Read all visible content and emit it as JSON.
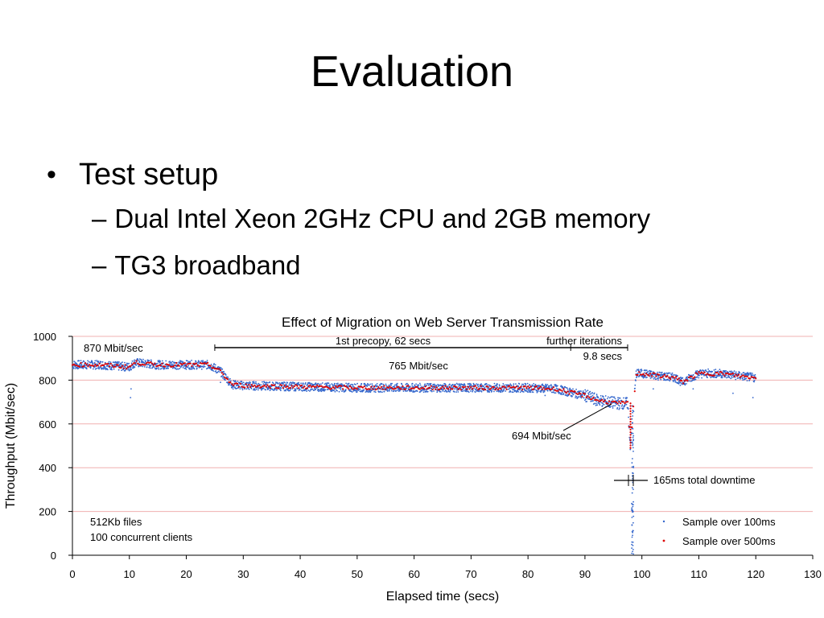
{
  "slide": {
    "title": "Evaluation",
    "bullet": "Test setup",
    "bullet_marker": "•",
    "sub_marker": "–",
    "sub_bullets": [
      "Dual Intel Xeon 2GHz CPU and 2GB memory",
      "TG3 broadband"
    ]
  },
  "colors": {
    "sample_100ms": "#3366cc",
    "sample_500ms": "#dd0000",
    "gridline": "#f0b0b0"
  },
  "chart_data": {
    "type": "scatter",
    "title": "Effect of Migration on Web Server Transmission Rate",
    "xlabel": "Elapsed time (secs)",
    "ylabel": "Throughput (Mbit/sec)",
    "xlim": [
      0,
      130
    ],
    "ylim": [
      0,
      1000
    ],
    "xticks": [
      0,
      10,
      20,
      30,
      40,
      50,
      60,
      70,
      80,
      90,
      100,
      110,
      120,
      130
    ],
    "yticks": [
      0,
      200,
      400,
      600,
      800,
      1000
    ],
    "legend": {
      "placement": "bottom-right",
      "entries": [
        "Sample over 100ms",
        "Sample over 500ms"
      ]
    },
    "series": [
      {
        "name": "Sample over 500ms",
        "x": [
          0,
          5,
          10,
          11,
          15,
          20,
          24,
          26,
          28,
          30,
          40,
          50,
          60,
          70,
          80,
          85,
          88,
          90,
          92,
          94,
          96,
          97.5,
          98,
          98.4,
          99,
          100,
          103,
          106,
          107,
          110,
          114,
          117,
          120
        ],
        "y": [
          870,
          870,
          860,
          880,
          870,
          870,
          870,
          840,
          780,
          775,
          770,
          765,
          765,
          765,
          765,
          760,
          740,
          730,
          710,
          700,
          694,
          694,
          490,
          640,
          830,
          830,
          820,
          810,
          790,
          830,
          830,
          820,
          810
        ]
      }
    ],
    "annotations": {
      "rate_initial": "870 Mbit/sec",
      "precopy": "1st precopy, 62 secs",
      "iterations": "further iterations",
      "iterations_time": "9.8 secs",
      "rate_mid": "765 Mbit/sec",
      "rate_late": "694 Mbit/sec",
      "downtime": "165ms total downtime",
      "file_size": "512Kb files",
      "clients": "100 concurrent clients"
    }
  }
}
